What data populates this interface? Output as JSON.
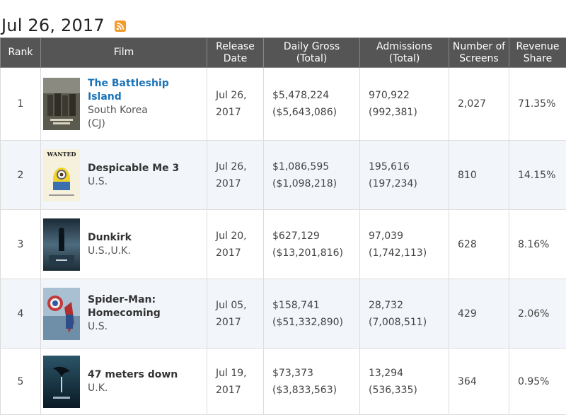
{
  "header": {
    "date": "Jul 26, 2017",
    "rss_icon": "rss-icon"
  },
  "table": {
    "columns": {
      "rank": "Rank",
      "film": "Film",
      "release_line1": "Release",
      "release_line2": "Date",
      "gross_line1": "Daily Gross",
      "gross_line2": "(Total)",
      "adm_line1": "Admissions",
      "adm_line2": "(Total)",
      "screens_line1": "Number of",
      "screens_line2": "Screens",
      "share_line1": "Revenue",
      "share_line2": "Share"
    },
    "rows": [
      {
        "rank": "1",
        "title": "The Battleship Island",
        "country": "South Korea",
        "distributor": "(CJ)",
        "release_line1": "Jul 26,",
        "release_line2": "2017",
        "gross": "$5,478,224",
        "gross_total": "($5,643,086)",
        "admissions": "970,922",
        "admissions_total": "(992,381)",
        "screens": "2,027",
        "share": "71.35%",
        "poster_color": "#5b5a4e"
      },
      {
        "rank": "2",
        "title": "Despicable Me 3",
        "country": "U.S.",
        "release_line1": "Jul 26,",
        "release_line2": "2017",
        "gross": "$1,086,595",
        "gross_total": "($1,098,218)",
        "admissions": "195,616",
        "admissions_total": "(197,234)",
        "screens": "810",
        "share": "14.15%",
        "poster_text": "WANTED",
        "poster_color": "#f4e8b5"
      },
      {
        "rank": "3",
        "title": "Dunkirk",
        "country": "U.S.,U.K.",
        "release_line1": "Jul 20,",
        "release_line2": "2017",
        "gross": "$627,129",
        "gross_total": "($13,201,816)",
        "admissions": "97,039",
        "admissions_total": "(1,742,113)",
        "screens": "628",
        "share": "8.16%",
        "poster_color": "#2f4656"
      },
      {
        "rank": "4",
        "title_line1": "Spider-Man:",
        "title_line2": "Homecoming",
        "country": "U.S.",
        "release_line1": "Jul 05,",
        "release_line2": "2017",
        "gross": "$158,741",
        "gross_total": "($51,332,890)",
        "admissions": "28,732",
        "admissions_total": "(7,008,511)",
        "screens": "429",
        "share": "2.06%",
        "poster_color": "#7c9bb4"
      },
      {
        "rank": "5",
        "title": "47 meters down",
        "country": "U.K.",
        "release_line1": "Jul 19,",
        "release_line2": "2017",
        "gross": "$73,373",
        "gross_total": "($3,833,563)",
        "admissions": "13,294",
        "admissions_total": "(536,335)",
        "screens": "364",
        "share": "0.95%",
        "poster_color": "#13303f"
      }
    ]
  },
  "colors": {
    "header_bg": "#555555",
    "link": "#1a73b8",
    "row_alt": "#f2f5fa",
    "rss": "#f39a2b"
  }
}
